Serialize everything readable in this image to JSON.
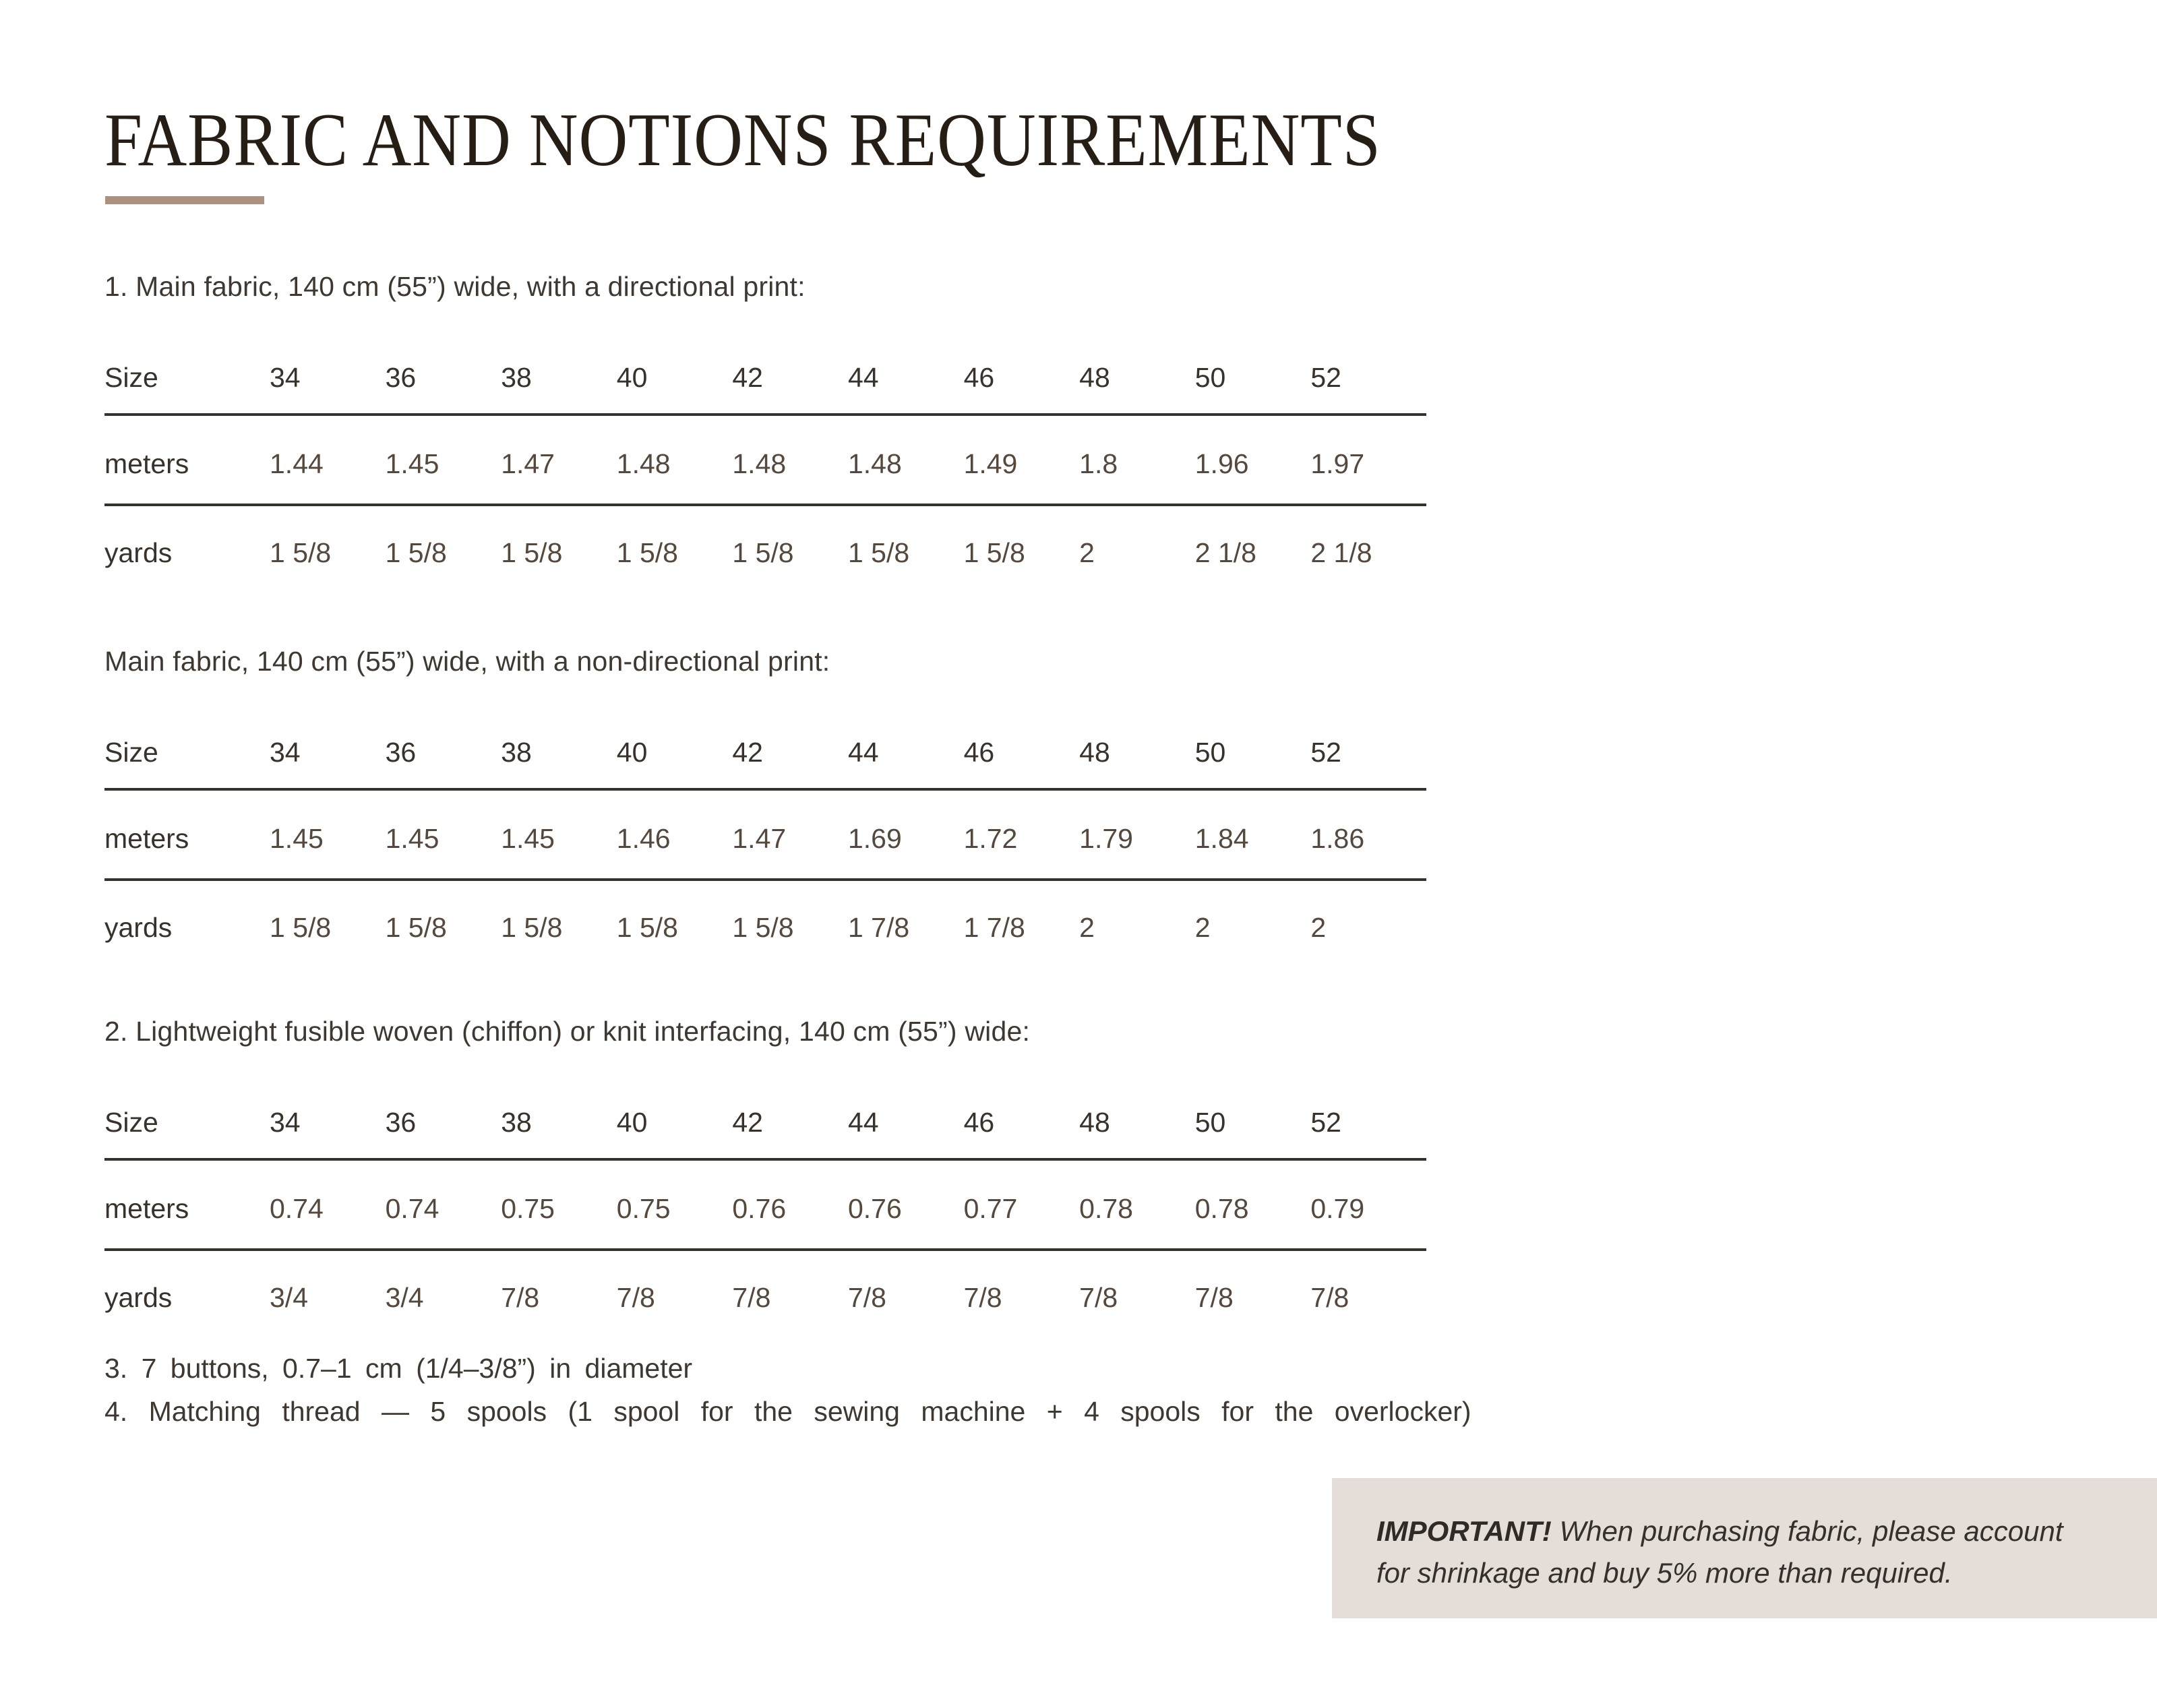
{
  "page": {
    "title": "FABRIC AND NOTIONS REQUIREMENTS",
    "background_color": "#ffffff",
    "text_color": "#3e3831",
    "accent_bar_color": "#ac9181",
    "table_rule_color": "#35322e",
    "table_value_color": "#55493e"
  },
  "sections": [
    {
      "heading": "1. Main fabric, 140 cm (55”) wide, with a directional print:",
      "table": {
        "header_label": "Size",
        "sizes": [
          "34",
          "36",
          "38",
          "40",
          "42",
          "44",
          "46",
          "48",
          "50",
          "52"
        ],
        "rows": [
          {
            "label": "meters",
            "values": [
              "1.44",
              "1.45",
              "1.47",
              "1.48",
              "1.48",
              "1.48",
              "1.49",
              "1.8",
              "1.96",
              "1.97"
            ]
          },
          {
            "label": "yards",
            "values": [
              "1 5/8",
              "1 5/8",
              "1 5/8",
              "1 5/8",
              "1 5/8",
              "1 5/8",
              "1 5/8",
              "2",
              "2 1/8",
              "2 1/8"
            ]
          }
        ]
      }
    },
    {
      "heading": "Main fabric, 140 cm (55”) wide, with a non-directional print:",
      "table": {
        "header_label": "Size",
        "sizes": [
          "34",
          "36",
          "38",
          "40",
          "42",
          "44",
          "46",
          "48",
          "50",
          "52"
        ],
        "rows": [
          {
            "label": "meters",
            "values": [
              "1.45",
              "1.45",
              "1.45",
              "1.46",
              "1.47",
              "1.69",
              "1.72",
              "1.79",
              "1.84",
              "1.86"
            ]
          },
          {
            "label": "yards",
            "values": [
              "1 5/8",
              "1 5/8",
              "1 5/8",
              "1 5/8",
              "1 5/8",
              "1 7/8",
              "1 7/8",
              "2",
              "2",
              "2"
            ]
          }
        ]
      }
    },
    {
      "heading": "2. Lightweight fusible woven (chiffon) or knit interfacing, 140 cm (55”) wide:",
      "table": {
        "header_label": "Size",
        "sizes": [
          "34",
          "36",
          "38",
          "40",
          "42",
          "44",
          "46",
          "48",
          "50",
          "52"
        ],
        "rows": [
          {
            "label": "meters",
            "values": [
              "0.74",
              "0.74",
              "0.75",
              "0.75",
              "0.76",
              "0.76",
              "0.77",
              "0.78",
              "0.78",
              "0.79"
            ]
          },
          {
            "label": "yards",
            "values": [
              "3/4",
              "3/4",
              "7/8",
              "7/8",
              "7/8",
              "7/8",
              "7/8",
              "7/8",
              "7/8",
              "7/8"
            ]
          }
        ]
      }
    }
  ],
  "notes": [
    "3. 7 buttons, 0.7–1 cm (1/4–3/8”) in diameter",
    "4. Matching thread — 5 spools (1 spool for the sewing machine + 4 spools for the overlocker)"
  ],
  "important": {
    "label": "IMPORTANT!",
    "lines": [
      "When purchasing fabric, please account",
      "for shrinkage and buy 5% more than required."
    ],
    "background_color": "#e5ddd8"
  }
}
